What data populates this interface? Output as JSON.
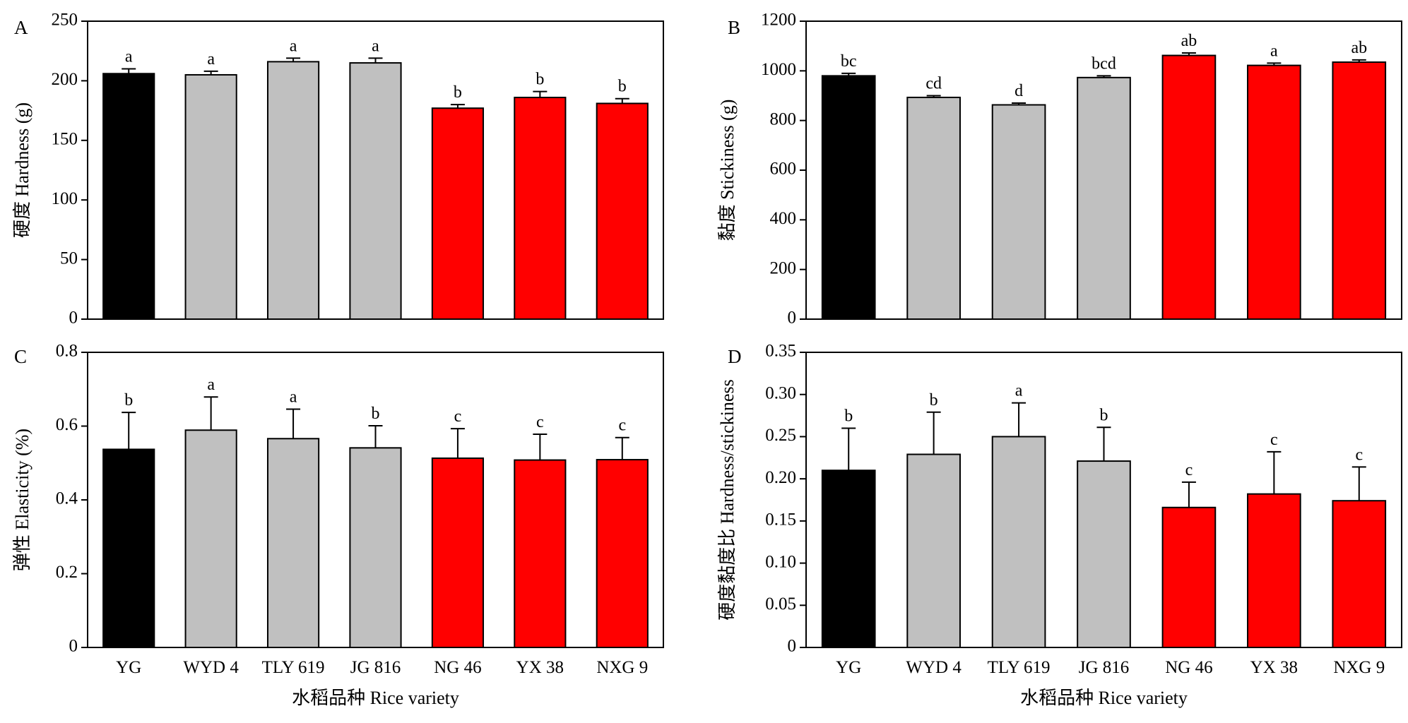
{
  "figure": {
    "x_title": "水稻品种 Rice variety"
  },
  "chart_data": [
    {
      "type": "bar",
      "panel": "A",
      "ylabel": "硬度 Hardness (g)",
      "xlabel": "",
      "ylim": [
        0,
        250
      ],
      "yticks": [
        0,
        50,
        100,
        150,
        200,
        250
      ],
      "categories": [
        "YG",
        "WYD 4",
        "TLY 619",
        "JG 816",
        "NG 46",
        "YX 38",
        "NXG 9"
      ],
      "values": [
        206,
        205,
        216,
        215,
        177,
        186,
        181
      ],
      "errors": [
        4,
        3,
        3,
        4,
        3,
        5,
        4
      ],
      "sig": [
        "a",
        "a",
        "a",
        "a",
        "b",
        "b",
        "b"
      ],
      "show_category_labels": false,
      "show_x_title": false
    },
    {
      "type": "bar",
      "panel": "B",
      "ylabel": "黏度 Stickiness (g)",
      "xlabel": "",
      "ylim": [
        0,
        1200
      ],
      "yticks": [
        0,
        200,
        400,
        600,
        800,
        1000,
        1200
      ],
      "categories": [
        "YG",
        "WYD 4",
        "TLY 619",
        "JG 816",
        "NG 46",
        "YX 38",
        "NXG 9"
      ],
      "values": [
        980,
        893,
        863,
        973,
        1062,
        1022,
        1035
      ],
      "errors": [
        10,
        7,
        7,
        7,
        10,
        9,
        9
      ],
      "sig": [
        "bc",
        "cd",
        "d",
        "bcd",
        "ab",
        "a",
        "ab"
      ],
      "show_category_labels": false,
      "show_x_title": false
    },
    {
      "type": "bar",
      "panel": "C",
      "ylabel": "弹性 Elasticity (%)",
      "xlabel": "",
      "ylim": [
        0,
        0.8
      ],
      "yticks": [
        "0",
        "0.2",
        "0.4",
        "0.6",
        "0.8"
      ],
      "categories": [
        "YG",
        "WYD 4",
        "TLY 619",
        "JG 816",
        "NG 46",
        "YX 38",
        "NXG 9"
      ],
      "values": [
        0.537,
        0.589,
        0.566,
        0.541,
        0.513,
        0.508,
        0.509
      ],
      "errors": [
        0.1,
        0.09,
        0.08,
        0.06,
        0.08,
        0.07,
        0.06
      ],
      "sig": [
        "b",
        "a",
        "a",
        "b",
        "c",
        "c",
        "c"
      ],
      "show_category_labels": true,
      "show_x_title": true
    },
    {
      "type": "bar",
      "panel": "D",
      "ylabel": "硬度黏度比 Hardness/stickiness",
      "xlabel": "",
      "ylim": [
        0,
        0.35
      ],
      "yticks": [
        "0",
        "0.05",
        "0.10",
        "0.15",
        "0.20",
        "0.25",
        "0.30",
        "0.35"
      ],
      "categories": [
        "YG",
        "WYD 4",
        "TLY 619",
        "JG 816",
        "NG 46",
        "YX 38",
        "NXG 9"
      ],
      "values": [
        0.21,
        0.229,
        0.25,
        0.221,
        0.166,
        0.182,
        0.174
      ],
      "errors": [
        0.05,
        0.05,
        0.04,
        0.04,
        0.03,
        0.05,
        0.04
      ],
      "sig": [
        "b",
        "b",
        "a",
        "b",
        "c",
        "c",
        "c"
      ],
      "show_category_labels": true,
      "show_x_title": true
    }
  ],
  "colors": {
    "bars": [
      "#000000",
      "#c0c0c0",
      "#c0c0c0",
      "#c0c0c0",
      "#ff0000",
      "#ff0000",
      "#ff0000"
    ],
    "outline": "#000000"
  }
}
